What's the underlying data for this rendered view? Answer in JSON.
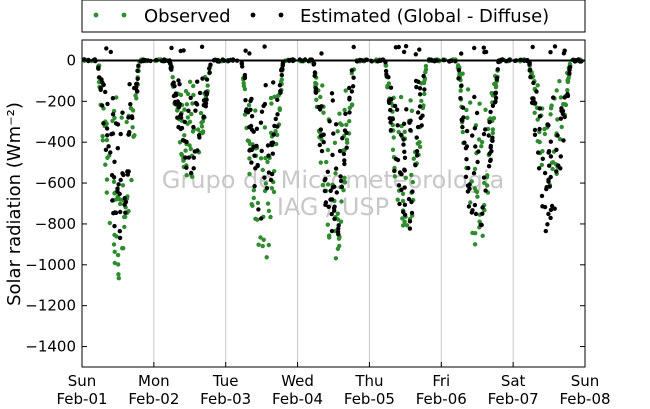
{
  "chart_data": {
    "type": "scatter",
    "ylabel": "Solar radiation (Wm⁻²)",
    "xlabel": "",
    "ylim": [
      -1500,
      100
    ],
    "yticks": [
      0,
      -200,
      -400,
      -600,
      -800,
      -1000,
      -1200,
      -1400
    ],
    "x_range_days": [
      0,
      7
    ],
    "x_tick_labels": [
      {
        "day": "Sun",
        "date": "Feb-01"
      },
      {
        "day": "Mon",
        "date": "Feb-02"
      },
      {
        "day": "Tue",
        "date": "Feb-03"
      },
      {
        "day": "Wed",
        "date": "Feb-04"
      },
      {
        "day": "Thu",
        "date": "Feb-05"
      },
      {
        "day": "Fri",
        "date": "Feb-06"
      },
      {
        "day": "Sat",
        "date": "Feb-07"
      },
      {
        "day": "Sun",
        "date": "Feb-08"
      }
    ],
    "grid": "vertical",
    "legend_position": "top",
    "series": [
      {
        "name": "Observed",
        "color": "#2e8b2e",
        "marker": "dot",
        "daily_peaks": [
          -1080,
          -600,
          -1040,
          -1000,
          -860,
          -940,
          -650
        ]
      },
      {
        "name": "Estimated (Global - Diffuse)",
        "color": "#000000",
        "marker": "dot",
        "daily_peaks": [
          -880,
          -560,
          -780,
          -900,
          -870,
          -920,
          -880
        ]
      }
    ],
    "watermark": [
      "Grupo de Micrometeorologia",
      "IAG / USP"
    ]
  }
}
